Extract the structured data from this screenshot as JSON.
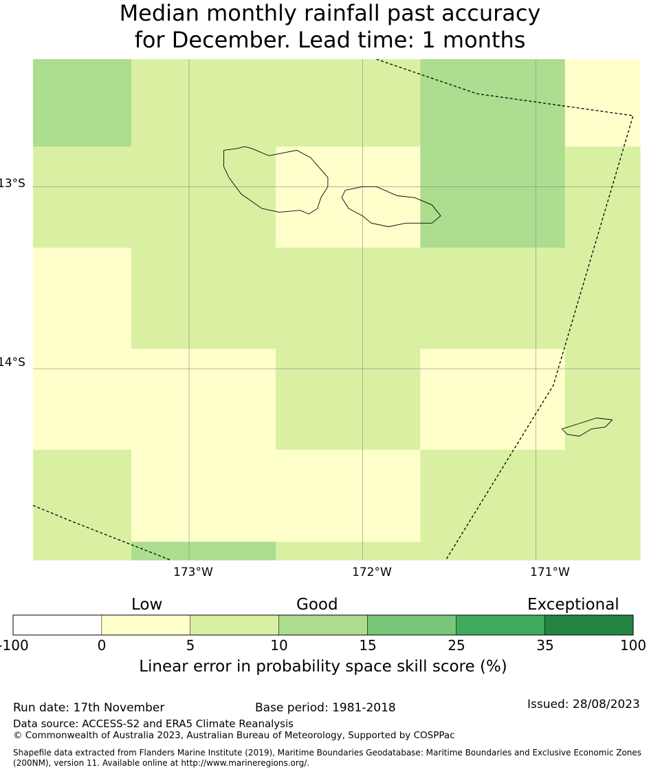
{
  "title_line1": "Median monthly rainfall past accuracy",
  "title_line2": "for December. Lead time: 1 months",
  "map": {
    "lon_range": [
      -173.9,
      -170.4
    ],
    "lat_range": [
      -15.05,
      -12.3
    ],
    "grid_lon_edges": [
      -173.9,
      -173.333,
      -172.5,
      -171.667,
      -170.833,
      -170.4
    ],
    "grid_lat_edges": [
      -12.3,
      -12.78,
      -13.335,
      -13.89,
      -14.445,
      -14.95,
      -15.05
    ],
    "cells": [
      [
        10,
        5,
        5,
        10,
        0
      ],
      [
        5,
        5,
        0,
        10,
        5
      ],
      [
        0,
        5,
        5,
        5,
        5
      ],
      [
        0,
        0,
        5,
        0,
        5
      ],
      [
        5,
        0,
        0,
        5,
        5
      ],
      [
        5,
        10,
        5,
        5,
        5
      ]
    ],
    "lon_ticks": [
      {
        "value": -173,
        "label": "173°W"
      },
      {
        "value": -172,
        "label": "172°W"
      },
      {
        "value": -171,
        "label": "171°W"
      }
    ],
    "lat_ticks": [
      {
        "value": -13,
        "label": "13°S"
      },
      {
        "value": -14,
        "label": "14°S"
      }
    ],
    "eez_boundaries": [
      [
        [
          -171.92,
          -12.3
        ],
        [
          -171.34,
          -12.49
        ],
        [
          -170.44,
          -12.61
        ],
        [
          -170.9,
          -14.09
        ],
        [
          -171.52,
          -15.05
        ]
      ],
      [
        [
          -173.9,
          -14.75
        ],
        [
          -173.67,
          -14.84
        ],
        [
          -173.0,
          -15.09
        ]
      ]
    ],
    "islands": [
      {
        "name": "Savaii",
        "points": [
          [
            -172.8,
            -12.8
          ],
          [
            -172.72,
            -12.79
          ],
          [
            -172.68,
            -12.78
          ],
          [
            -172.64,
            -12.79
          ],
          [
            -172.54,
            -12.83
          ],
          [
            -172.38,
            -12.8
          ],
          [
            -172.3,
            -12.84
          ],
          [
            -172.2,
            -12.95
          ],
          [
            -172.2,
            -13.0
          ],
          [
            -172.24,
            -13.06
          ],
          [
            -172.26,
            -13.12
          ],
          [
            -172.31,
            -13.15
          ],
          [
            -172.36,
            -13.13
          ],
          [
            -172.48,
            -13.14
          ],
          [
            -172.58,
            -13.12
          ],
          [
            -172.7,
            -13.04
          ],
          [
            -172.77,
            -12.95
          ],
          [
            -172.8,
            -12.89
          ]
        ]
      },
      {
        "name": "Upolu",
        "points": [
          [
            -172.1,
            -13.02
          ],
          [
            -172.0,
            -13.0
          ],
          [
            -171.92,
            -13.0
          ],
          [
            -171.8,
            -13.05
          ],
          [
            -171.7,
            -13.06
          ],
          [
            -171.6,
            -13.1
          ],
          [
            -171.55,
            -13.16
          ],
          [
            -171.6,
            -13.2
          ],
          [
            -171.75,
            -13.2
          ],
          [
            -171.85,
            -13.22
          ],
          [
            -171.95,
            -13.2
          ],
          [
            -172.0,
            -13.16
          ],
          [
            -172.08,
            -13.12
          ],
          [
            -172.12,
            -13.06
          ]
        ]
      },
      {
        "name": "Tutuila",
        "points": [
          [
            -170.85,
            -14.33
          ],
          [
            -170.75,
            -14.3
          ],
          [
            -170.65,
            -14.27
          ],
          [
            -170.56,
            -14.28
          ],
          [
            -170.6,
            -14.32
          ],
          [
            -170.68,
            -14.33
          ],
          [
            -170.75,
            -14.37
          ],
          [
            -170.82,
            -14.36
          ]
        ]
      }
    ]
  },
  "colorbar": {
    "category_labels": [
      "Low",
      "Good",
      "Exceptional"
    ],
    "bins": [
      {
        "from": -100,
        "to": 0,
        "color": "#ffffff"
      },
      {
        "from": 0,
        "to": 5,
        "color": "#ffffcc"
      },
      {
        "from": 5,
        "to": 10,
        "color": "#d9f0a3"
      },
      {
        "from": 10,
        "to": 15,
        "color": "#addd8e"
      },
      {
        "from": 15,
        "to": 25,
        "color": "#78c679"
      },
      {
        "from": 25,
        "to": 35,
        "color": "#41ab5d"
      },
      {
        "from": 35,
        "to": 100,
        "color": "#238443"
      }
    ],
    "tick_labels": [
      "-100",
      "0",
      "5",
      "10",
      "15",
      "25",
      "35",
      "100"
    ],
    "title": "Linear error in probability space skill score (%)"
  },
  "footer": {
    "run_date": "Run date: 17th November",
    "base_period": "Base period: 1981-2018",
    "issued": "Issued: 28/08/2023",
    "data_source": "Data source: ACCESS-S2 and ERA5 Climate Reanalysis",
    "copyright": "© Commonwealth of Australia 2023, Australian Bureau of Meteorology, Supported by COSPPac",
    "shapefile_line1": "Shapefile data extracted from Flanders Marine Institute (2019), Maritime Boundaries Geodatabase: Maritime Boundaries and Exclusive Economic Zones",
    "shapefile_line2": "(200NM), version 11. Available online at http://www.marineregions.org/."
  }
}
